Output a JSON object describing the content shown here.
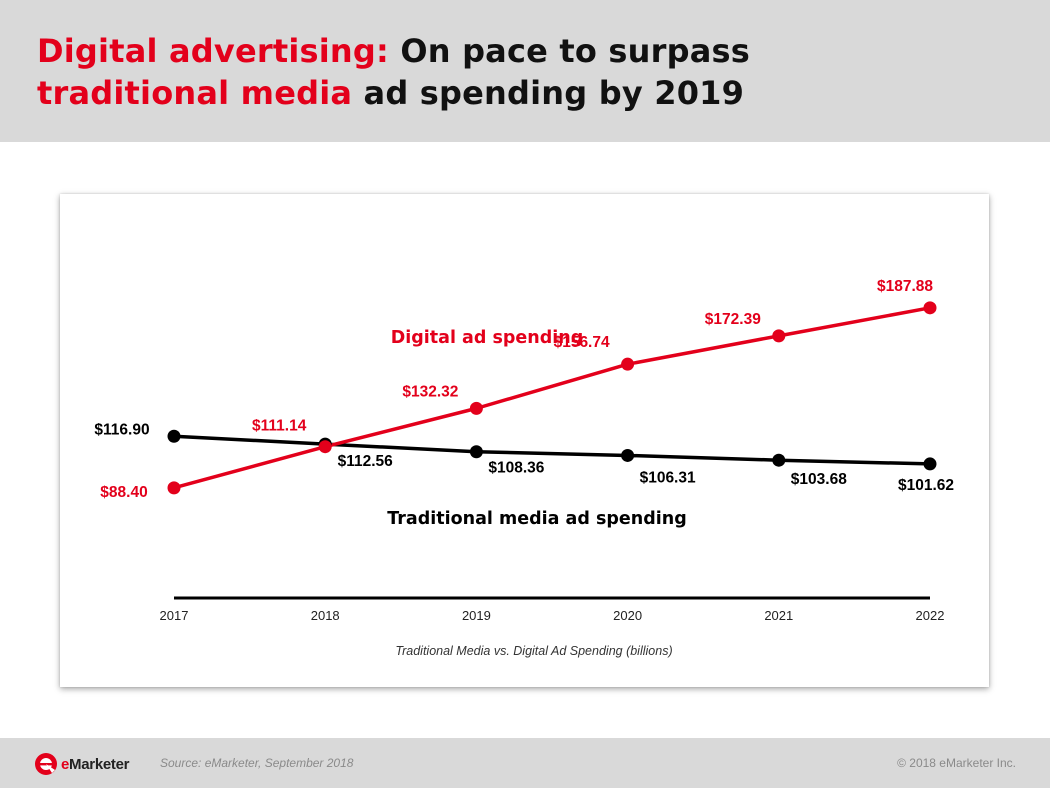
{
  "slide": {
    "title_red_1": "Digital advertising:",
    "title_black_1": " On pace to surpass",
    "title_red_2": "traditional media",
    "title_black_2": " ad spending by 2019"
  },
  "footer": {
    "brand_e": "e",
    "brand_rest": "Marketer",
    "source": "Source: eMarketer, September 2018",
    "copyright": "© 2018 eMarketer Inc."
  },
  "colors": {
    "accent": "#e3001b",
    "dark": "#000000",
    "header_bg": "#d9d9d9"
  },
  "chart_data": {
    "type": "line",
    "title": "",
    "xlabel": "Traditional Media vs. Digital Ad Spending (billions)",
    "ylabel": "",
    "x": [
      "2017",
      "2018",
      "2019",
      "2020",
      "2021",
      "2022"
    ],
    "ylim": [
      0,
      200
    ],
    "grid": false,
    "series": [
      {
        "name": "Digital ad spending",
        "color": "#e3001b",
        "values": [
          88.4,
          111.14,
          132.32,
          156.74,
          172.39,
          187.88
        ],
        "labels": [
          "$88.40",
          "$111.14",
          "$132.32",
          "$156.74",
          "$172.39",
          "$187.88"
        ]
      },
      {
        "name": "Traditional media ad spending",
        "color": "#000000",
        "values": [
          116.9,
          112.56,
          108.36,
          106.31,
          103.68,
          101.62
        ],
        "labels": [
          "$116.90",
          "$112.56",
          "$108.36",
          "$106.31",
          "$103.68",
          "$101.62"
        ]
      }
    ]
  }
}
